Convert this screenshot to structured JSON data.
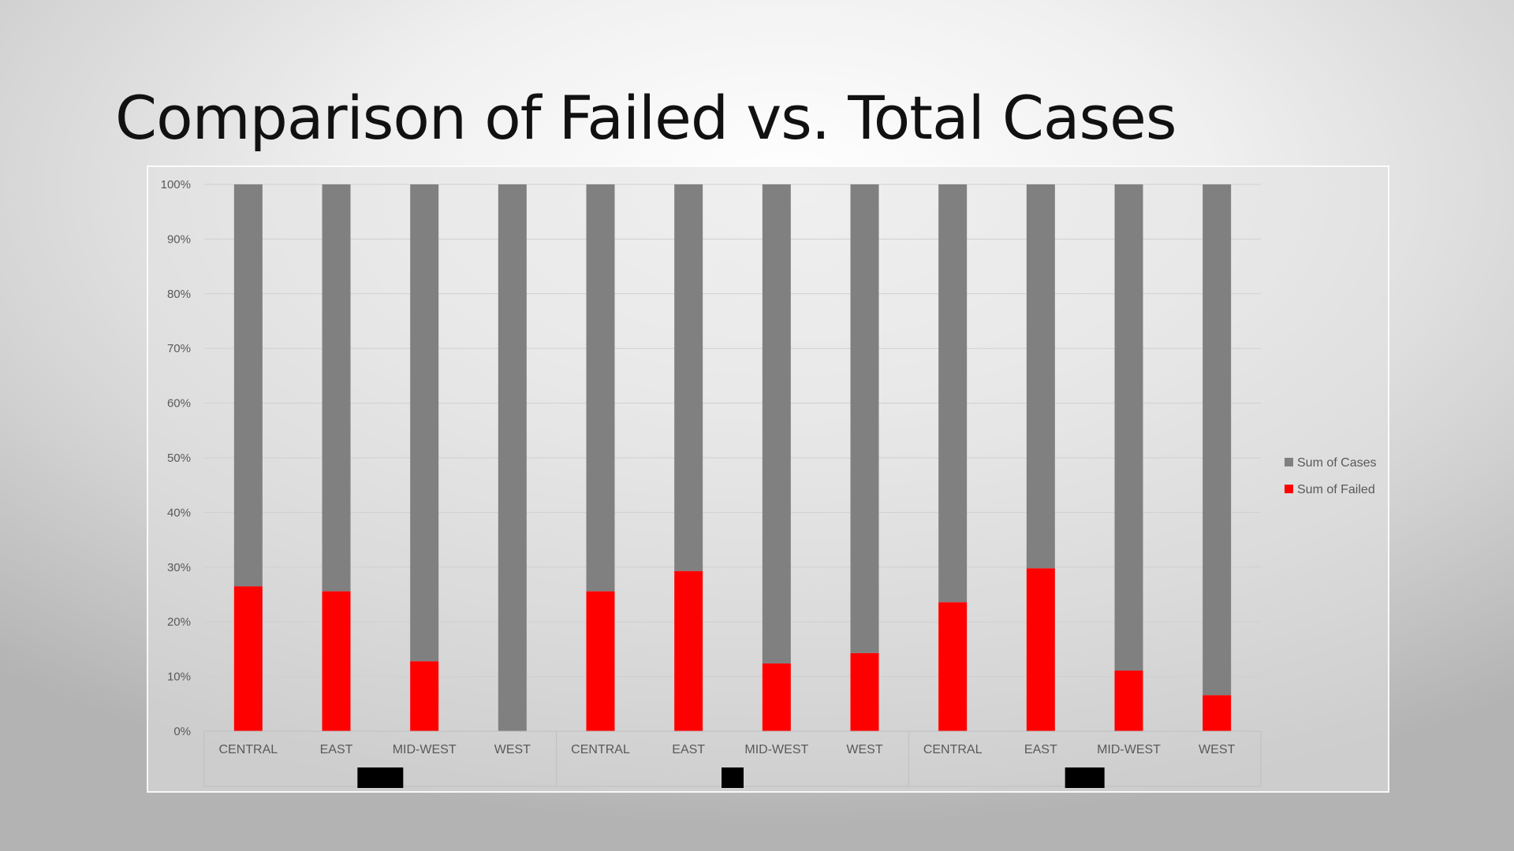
{
  "slide": {
    "title": "Comparison of Failed vs. Total Cases"
  },
  "chart_data": {
    "type": "bar",
    "stacked": "percent",
    "categories": [
      "CENTRAL",
      "EAST",
      "MID-WEST",
      "WEST",
      "CENTRAL",
      "EAST",
      "MID-WEST",
      "WEST",
      "CENTRAL",
      "EAST",
      "MID-WEST",
      "WEST"
    ],
    "groups": [
      {
        "label": "",
        "redacted": true,
        "span": [
          0,
          3
        ]
      },
      {
        "label": "",
        "redacted": true,
        "span": [
          4,
          7
        ]
      },
      {
        "label": "",
        "redacted": true,
        "span": [
          8,
          11
        ]
      }
    ],
    "series": [
      {
        "name": "Sum of Failed",
        "color": "#ff0000",
        "values": [
          26.5,
          25.6,
          12.8,
          0,
          25.6,
          29.3,
          12.4,
          14.3,
          23.6,
          29.8,
          11.1,
          6.6
        ]
      },
      {
        "name": "Sum of Cases",
        "color": "#808080",
        "values": [
          73.5,
          74.4,
          87.2,
          100,
          74.4,
          70.7,
          87.6,
          85.7,
          76.4,
          70.2,
          88.9,
          93.4
        ]
      }
    ],
    "ylim": [
      0,
      100
    ],
    "yticks": [
      "0%",
      "10%",
      "20%",
      "30%",
      "40%",
      "50%",
      "60%",
      "70%",
      "80%",
      "90%",
      "100%"
    ],
    "grid": true,
    "legend": {
      "position": "right",
      "entries": [
        {
          "label": "Sum of Cases",
          "color": "#808080"
        },
        {
          "label": "Sum of Failed",
          "color": "#ff0000"
        }
      ]
    },
    "redaction_color": "#000000"
  }
}
